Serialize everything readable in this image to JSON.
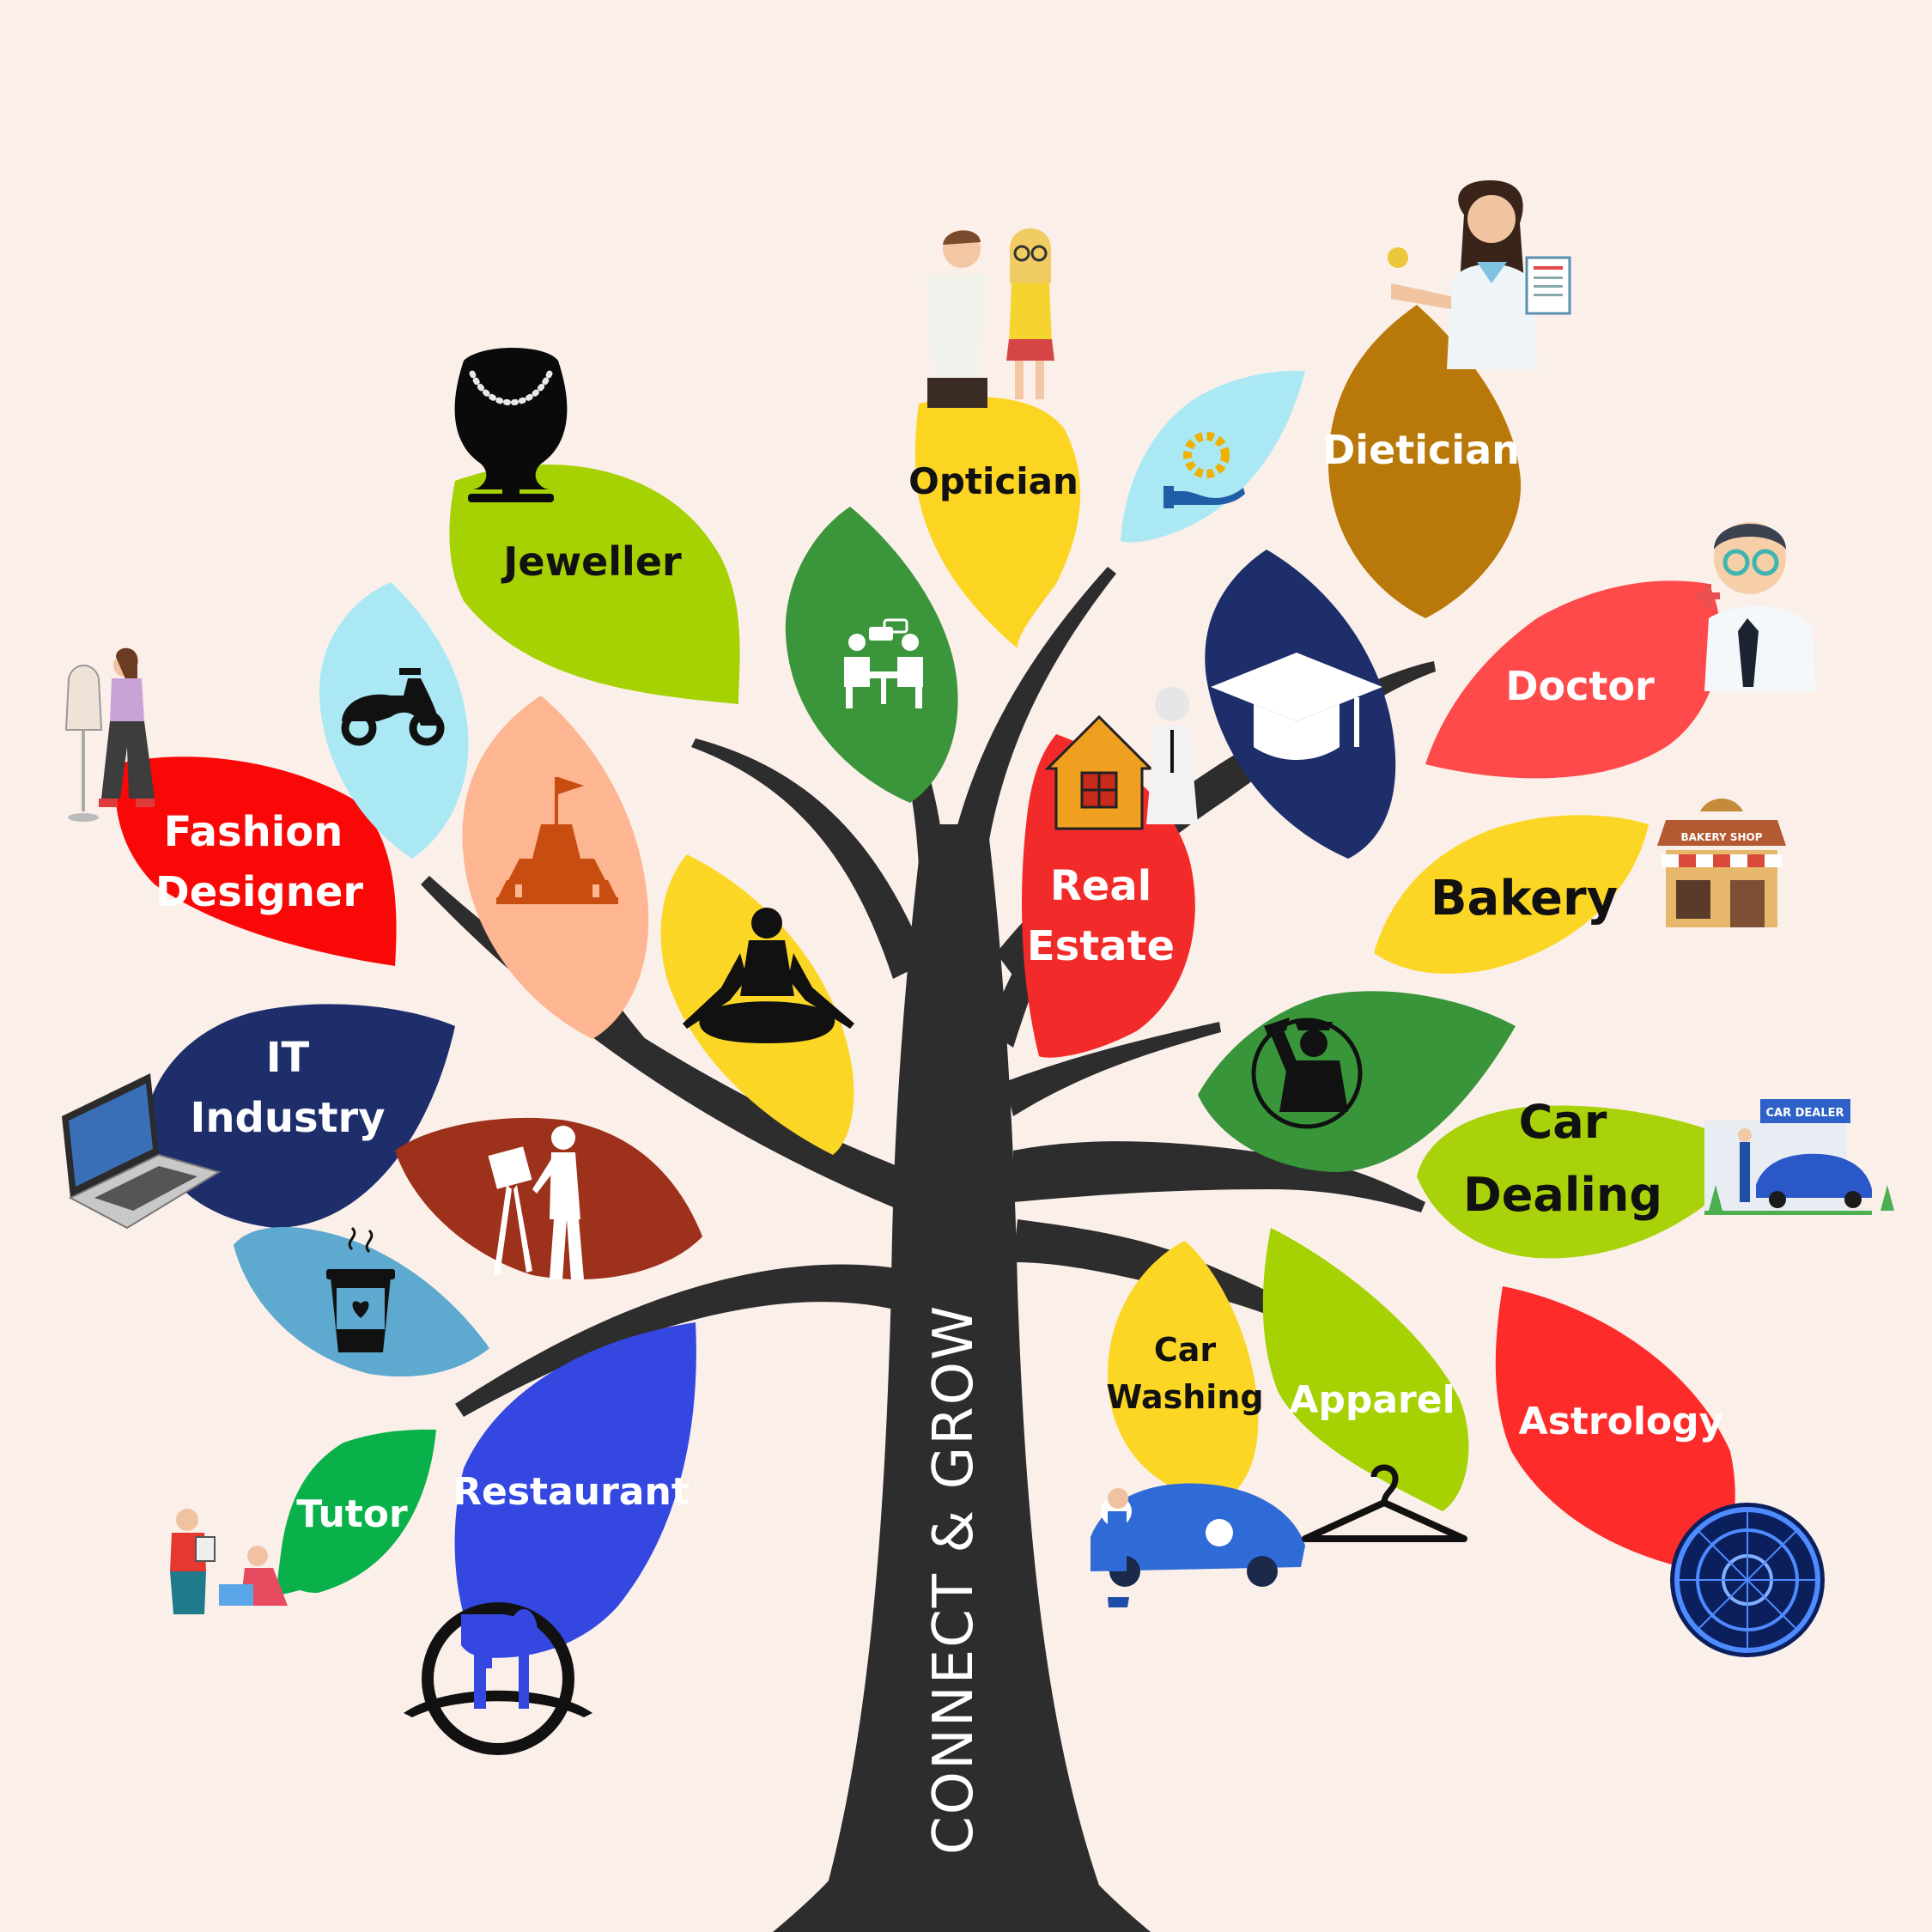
{
  "trunk_text": "CONNECT & GROW",
  "colors": {
    "background": "#fbefea",
    "trunk": "#2d2d2d"
  },
  "leaves": [
    {
      "id": "jeweller",
      "lines": [
        "Jeweller"
      ],
      "color": "#a6d102",
      "text_color": "#111111",
      "icon": "necklace-bust-icon"
    },
    {
      "id": "optician",
      "lines": [
        "Optician"
      ],
      "color": "#fcd523",
      "text_color": "#111111",
      "icon": "optician-exam-icon"
    },
    {
      "id": "dietician",
      "lines": [
        "Dietician"
      ],
      "color": "#b9790a",
      "text_color": "#ffffff",
      "icon": "dietician-woman-icon"
    },
    {
      "id": "doctor",
      "lines": [
        "Doctor"
      ],
      "color": "#fe4a4a",
      "text_color": "#ffffff",
      "icon": "doctor-avatar-icon"
    },
    {
      "id": "bakery",
      "lines": [
        "Bakery"
      ],
      "color": "#fcd624",
      "text_color": "#111111",
      "icon": "bakery-shop-icon"
    },
    {
      "id": "car-dealing",
      "lines": [
        "Car",
        "Dealing"
      ],
      "color": "#a9d20a",
      "text_color": "#111111",
      "icon": "car-dealer-icon"
    },
    {
      "id": "real-estate",
      "lines": [
        "Real",
        "Estate"
      ],
      "color": "#f22a2a",
      "text_color": "#ffffff",
      "icon": "house-agent-icon"
    },
    {
      "id": "fashion-designer",
      "lines": [
        "Fashion",
        "Designer"
      ],
      "color": "#fa0808",
      "text_color": "#ffffff",
      "icon": "tailor-mannequin-icon"
    },
    {
      "id": "it-industry",
      "lines": [
        "IT",
        "Industry"
      ],
      "color": "#1d2e6b",
      "text_color": "#ffffff",
      "icon": "laptop-icon"
    },
    {
      "id": "tutor",
      "lines": [
        "Tutor"
      ],
      "color": "#0ab14a",
      "text_color": "#ffffff",
      "icon": "teacher-student-icon"
    },
    {
      "id": "restaurant",
      "lines": [
        "Restaurant"
      ],
      "color": "#3447e0",
      "text_color": "#ffffff",
      "icon": "fork-spoon-icon"
    },
    {
      "id": "car-washing",
      "lines": [
        "Car",
        "Washing"
      ],
      "color": "#fcd624",
      "text_color": "#111111",
      "icon": "car-wash-icon"
    },
    {
      "id": "apparel",
      "lines": [
        "Apparel"
      ],
      "color": "#a6d102",
      "text_color": "#ffffff",
      "icon": "hanger-icon"
    },
    {
      "id": "astrology",
      "lines": [
        "Astrology"
      ],
      "color": "#fe2b2b",
      "text_color": "#ffffff",
      "icon": "zodiac-wheel-icon"
    }
  ],
  "icon_leaves": [
    {
      "id": "scooter",
      "color": "#aae9f4",
      "icon": "scooter-icon"
    },
    {
      "id": "temple",
      "color": "#fdb592",
      "icon": "pagoda-icon"
    },
    {
      "id": "meeting",
      "color": "#3b953a",
      "icon": "meeting-people-icon"
    },
    {
      "id": "hand-gear",
      "color": "#aae9f4",
      "icon": "hand-gear-icon"
    },
    {
      "id": "graduation",
      "color": "#1d2e6b",
      "icon": "graduation-cap-icon"
    },
    {
      "id": "yoga",
      "color": "#fcd624",
      "icon": "meditation-icon"
    },
    {
      "id": "artist",
      "color": "#9d311b",
      "icon": "painter-easel-icon"
    },
    {
      "id": "coffee",
      "color": "#5ea9cf",
      "icon": "coffee-cup-icon"
    },
    {
      "id": "plumber",
      "color": "#38953a",
      "icon": "plumber-wrench-icon"
    }
  ],
  "signs": {
    "bakery_shop": "BAKERY SHOP",
    "car_dealer": "CAR DEALER"
  }
}
